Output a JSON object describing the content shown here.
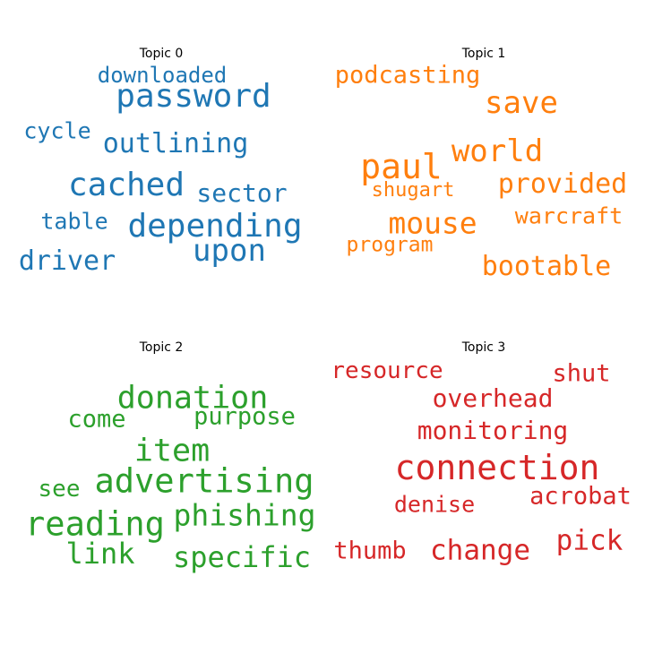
{
  "chart_data": {
    "type": "wordcloud",
    "panels": [
      {
        "title": "Topic 0",
        "color": "#1f77b4",
        "words": [
          "downloaded",
          "password",
          "cycle",
          "outlining",
          "cached",
          "sector",
          "table",
          "depending",
          "upon",
          "driver"
        ]
      },
      {
        "title": "Topic 1",
        "color": "#ff7f0e",
        "words": [
          "podcasting",
          "save",
          "world",
          "paul",
          "provided",
          "shugart",
          "mouse",
          "warcraft",
          "program",
          "bootable"
        ]
      },
      {
        "title": "Topic 2",
        "color": "#2ca02c",
        "words": [
          "donation",
          "come",
          "purpose",
          "item",
          "advertising",
          "see",
          "reading",
          "phishing",
          "link",
          "specific"
        ]
      },
      {
        "title": "Topic 3",
        "color": "#d62728",
        "words": [
          "resource",
          "shut",
          "overhead",
          "monitoring",
          "connection",
          "denise",
          "acrobat",
          "pick",
          "thumb",
          "change"
        ]
      }
    ]
  }
}
